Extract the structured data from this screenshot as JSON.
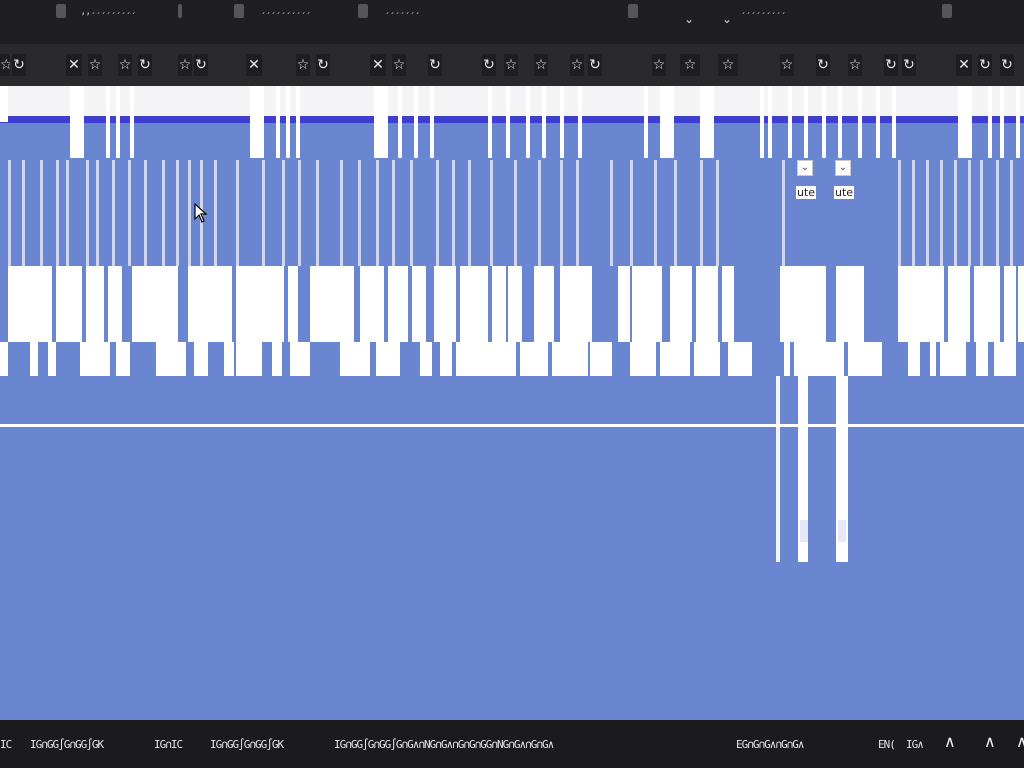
{
  "window": {
    "title_fragments": [
      "’’´´´´´´´´´",
      "´´´´´´´´´´",
      "´´´´´´´",
      "´´´´´´´´´"
    ],
    "caret": "⌄"
  },
  "toolbar": {
    "bookmark_icon": "☆",
    "close_icon": "✕",
    "refresh_icon": "↻"
  },
  "dropdown_labels": [
    "ute",
    "ute"
  ],
  "dropdown_caret": "⌄",
  "taskbar": {
    "fragments": [
      "IC",
      "IG∩GG∫G∩GG∫GK",
      "IG∩IC",
      "IG∩GG∫G∩GG∫GK",
      "IG∩GG∫G∩GG∫G∩G∧∩NG∩G∧∩G∩G∩GG∩NG∩G∧∩G∩G∧",
      "EG∩G∩G∧∩G∩G∧",
      "EN(",
      "IG∧"
    ],
    "caret": "∧"
  }
}
